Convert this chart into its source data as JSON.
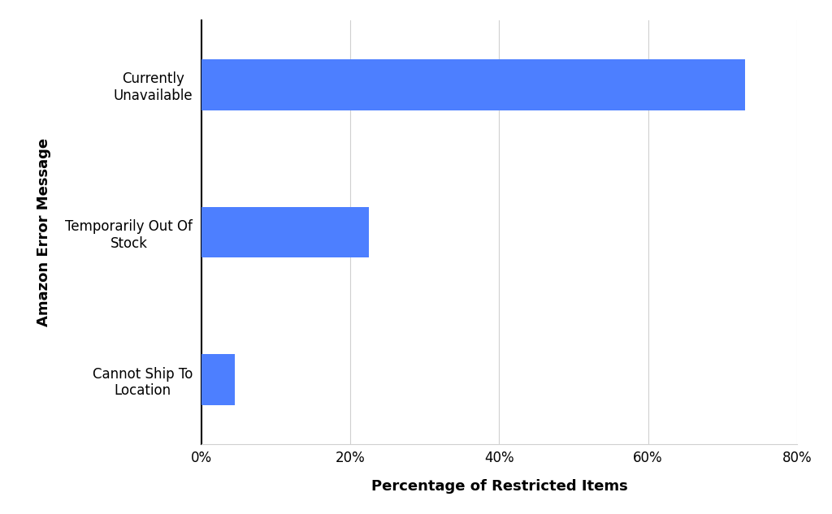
{
  "categories": [
    "Cannot Ship To\nLocation",
    "Temporarily Out Of\nStock",
    "Currently\nUnavailable"
  ],
  "values": [
    4.5,
    22.5,
    73.0
  ],
  "bar_color": "#4d7fff",
  "xlabel": "Percentage of Restricted Items",
  "ylabel": "Amazon Error Message",
  "xlim": [
    0,
    80
  ],
  "xtick_values": [
    0,
    20,
    40,
    60,
    80
  ],
  "xtick_labels": [
    "0%",
    "20%",
    "40%",
    "60%",
    "80%"
  ],
  "background_color": "#ffffff",
  "bar_height": 0.55,
  "label_fontsize": 13,
  "tick_fontsize": 12,
  "ylabel_fontsize": 13
}
